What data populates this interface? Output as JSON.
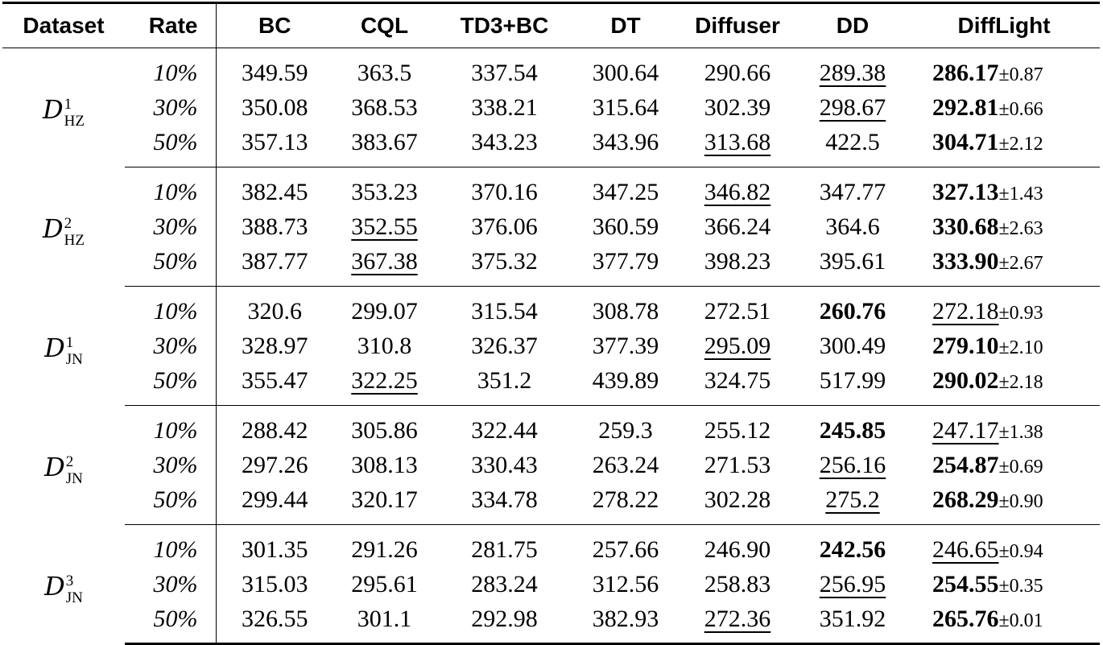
{
  "headers": [
    "Dataset",
    "Rate",
    "BC",
    "CQL",
    "TD3+BC",
    "DT",
    "Diffuser",
    "DD",
    "DiffLight"
  ],
  "groups": [
    {
      "dataset": {
        "base": "D",
        "sup": "1",
        "sub": "HZ"
      },
      "rows": [
        {
          "rate": "10%",
          "bc": "349.59",
          "cql": "363.5",
          "td3": "337.54",
          "dt": "300.64",
          "diffuser": "290.66",
          "dd": "289.38",
          "difflight": "286.17",
          "difflight_std": "±0.87",
          "underline": [
            "dd"
          ],
          "bold": [
            "difflight"
          ]
        },
        {
          "rate": "30%",
          "bc": "350.08",
          "cql": "368.53",
          "td3": "338.21",
          "dt": "315.64",
          "diffuser": "302.39",
          "dd": "298.67",
          "difflight": "292.81",
          "difflight_std": "±0.66",
          "underline": [
            "dd"
          ],
          "bold": [
            "difflight"
          ]
        },
        {
          "rate": "50%",
          "bc": "357.13",
          "cql": "383.67",
          "td3": "343.23",
          "dt": "343.96",
          "diffuser": "313.68",
          "dd": "422.5",
          "difflight": "304.71",
          "difflight_std": "±2.12",
          "underline": [
            "diffuser"
          ],
          "bold": [
            "difflight"
          ]
        }
      ]
    },
    {
      "dataset": {
        "base": "D",
        "sup": "2",
        "sub": "HZ"
      },
      "rows": [
        {
          "rate": "10%",
          "bc": "382.45",
          "cql": "353.23",
          "td3": "370.16",
          "dt": "347.25",
          "diffuser": "346.82",
          "dd": "347.77",
          "difflight": "327.13",
          "difflight_std": "±1.43",
          "underline": [
            "diffuser"
          ],
          "bold": [
            "difflight"
          ]
        },
        {
          "rate": "30%",
          "bc": "388.73",
          "cql": "352.55",
          "td3": "376.06",
          "dt": "360.59",
          "diffuser": "366.24",
          "dd": "364.6",
          "difflight": "330.68",
          "difflight_std": "±2.63",
          "underline": [
            "cql"
          ],
          "bold": [
            "difflight"
          ]
        },
        {
          "rate": "50%",
          "bc": "387.77",
          "cql": "367.38",
          "td3": "375.32",
          "dt": "377.79",
          "diffuser": "398.23",
          "dd": "395.61",
          "difflight": "333.90",
          "difflight_std": "±2.67",
          "underline": [
            "cql"
          ],
          "bold": [
            "difflight"
          ]
        }
      ]
    },
    {
      "dataset": {
        "base": "D",
        "sup": "1",
        "sub": "JN"
      },
      "rows": [
        {
          "rate": "10%",
          "bc": "320.6",
          "cql": "299.07",
          "td3": "315.54",
          "dt": "308.78",
          "diffuser": "272.51",
          "dd": "260.76",
          "difflight": "272.18",
          "difflight_std": "±0.93",
          "underline": [
            "difflight"
          ],
          "bold": [
            "dd"
          ]
        },
        {
          "rate": "30%",
          "bc": "328.97",
          "cql": "310.8",
          "td3": "326.37",
          "dt": "377.39",
          "diffuser": "295.09",
          "dd": "300.49",
          "difflight": "279.10",
          "difflight_std": "±2.10",
          "underline": [
            "diffuser"
          ],
          "bold": [
            "difflight"
          ]
        },
        {
          "rate": "50%",
          "bc": "355.47",
          "cql": "322.25",
          "td3": "351.2",
          "dt": "439.89",
          "diffuser": "324.75",
          "dd": "517.99",
          "difflight": "290.02",
          "difflight_std": "±2.18",
          "underline": [
            "cql"
          ],
          "bold": [
            "difflight"
          ]
        }
      ]
    },
    {
      "dataset": {
        "base": "D",
        "sup": "2",
        "sub": "JN"
      },
      "rows": [
        {
          "rate": "10%",
          "bc": "288.42",
          "cql": "305.86",
          "td3": "322.44",
          "dt": "259.3",
          "diffuser": "255.12",
          "dd": "245.85",
          "difflight": "247.17",
          "difflight_std": "±1.38",
          "underline": [
            "difflight"
          ],
          "bold": [
            "dd"
          ]
        },
        {
          "rate": "30%",
          "bc": "297.26",
          "cql": "308.13",
          "td3": "330.43",
          "dt": "263.24",
          "diffuser": "271.53",
          "dd": "256.16",
          "difflight": "254.87",
          "difflight_std": "±0.69",
          "underline": [
            "dd"
          ],
          "bold": [
            "difflight"
          ]
        },
        {
          "rate": "50%",
          "bc": "299.44",
          "cql": "320.17",
          "td3": "334.78",
          "dt": "278.22",
          "diffuser": "302.28",
          "dd": "275.2",
          "difflight": "268.29",
          "difflight_std": "±0.90",
          "underline": [
            "dd"
          ],
          "bold": [
            "difflight"
          ]
        }
      ]
    },
    {
      "dataset": {
        "base": "D",
        "sup": "3",
        "sub": "JN"
      },
      "rows": [
        {
          "rate": "10%",
          "bc": "301.35",
          "cql": "291.26",
          "td3": "281.75",
          "dt": "257.66",
          "diffuser": "246.90",
          "dd": "242.56",
          "difflight": "246.65",
          "difflight_std": "±0.94",
          "underline": [
            "difflight"
          ],
          "bold": [
            "dd"
          ]
        },
        {
          "rate": "30%",
          "bc": "315.03",
          "cql": "295.61",
          "td3": "283.24",
          "dt": "312.56",
          "diffuser": "258.83",
          "dd": "256.95",
          "difflight": "254.55",
          "difflight_std": "±0.35",
          "underline": [
            "dd"
          ],
          "bold": [
            "difflight"
          ]
        },
        {
          "rate": "50%",
          "bc": "326.55",
          "cql": "301.1",
          "td3": "292.98",
          "dt": "382.93",
          "diffuser": "272.36",
          "dd": "351.92",
          "difflight": "265.76",
          "difflight_std": "±0.01",
          "underline": [
            "diffuser"
          ],
          "bold": [
            "difflight"
          ]
        }
      ]
    }
  ]
}
